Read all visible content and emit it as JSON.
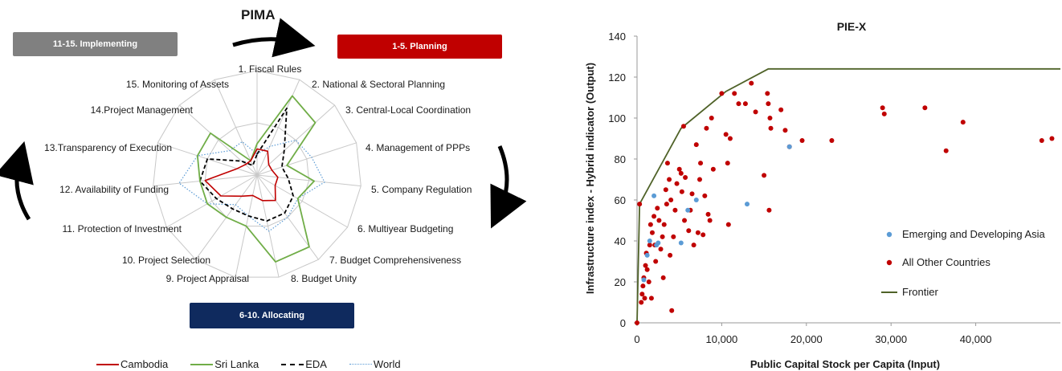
{
  "left_title": "PIMA",
  "phases": {
    "implementing": "11-15. Implementing",
    "planning": "1-5. Planning",
    "allocating": "6-10. Allocating"
  },
  "colors": {
    "implementing": "#808080",
    "planning": "#c00000",
    "allocating": "#0f2a5e",
    "cambodia": "#c00000",
    "sri_lanka": "#70ad47",
    "eda": "#000000",
    "world": "#5b9bd5",
    "asia_points": "#5b9bd5",
    "other_points": "#c00000",
    "frontier": "#4f6228"
  },
  "legend_left": [
    "Cambodia",
    "Sri Lanka",
    "EDA",
    "World"
  ],
  "chart_data": [
    {
      "type": "radar",
      "axes": [
        "1. Fiscal Rules",
        "2. National & Sectoral Planning",
        "3. Central-Local Coordination",
        "4. Management of PPPs",
        "5. Company Regulation",
        "6. Multiyear Budgeting",
        "7. Budget Comprehensiveness",
        "8. Budget Unity",
        "9. Project Appraisal",
        "10. Project Selection",
        "11. Protection of Investment",
        "12. Availability of Funding",
        "13.Transparency of Execution",
        "14.Project Management",
        "15. Monitoring of Assets"
      ],
      "rmax": 1,
      "series": [
        {
          "name": "Cambodia",
          "values": [
            0.25,
            0.25,
            0.15,
            0.15,
            0.2,
            0.2,
            0.3,
            0.25,
            0.2,
            0.25,
            0.4,
            0.5,
            0.2,
            0.15,
            0.15
          ]
        },
        {
          "name": "Sri Lanka",
          "values": [
            0.3,
            0.83,
            0.75,
            0.3,
            0.55,
            0.45,
            0.85,
            0.85,
            0.5,
            0.5,
            0.55,
            0.55,
            0.6,
            0.6,
            0.15
          ]
        },
        {
          "name": "EDA",
          "values": [
            0.2,
            0.7,
            0.35,
            0.25,
            0.3,
            0.4,
            0.45,
            0.45,
            0.4,
            0.4,
            0.45,
            0.55,
            0.5,
            0.2,
            0.1
          ]
        },
        {
          "name": "World",
          "values": [
            0.2,
            0.3,
            0.5,
            0.55,
            0.65,
            0.45,
            0.5,
            0.55,
            0.4,
            0.35,
            0.55,
            0.75,
            0.6,
            0.35,
            0.35
          ]
        }
      ]
    },
    {
      "type": "scatter",
      "title": "PIE-X",
      "xlabel": "Public Capital Stock per Capita (Input)",
      "ylabel": "Infrastructure index - Hybrid indicator (Output)",
      "xlim": [
        0,
        50000
      ],
      "ylim": [
        0,
        140
      ],
      "xticks": [
        "0",
        "10,000",
        "20,000",
        "30,000",
        "40,000"
      ],
      "xtick_values": [
        0,
        10000,
        20000,
        30000,
        40000
      ],
      "yticks": [
        0,
        20,
        40,
        60,
        80,
        100,
        120,
        140
      ],
      "legend": [
        "Emerging and Developing Asia",
        "All Other Countries",
        "Frontier"
      ],
      "series": [
        {
          "name": "Emerging and Developing Asia",
          "points": [
            [
              2000,
              62
            ],
            [
              1500,
              40
            ],
            [
              2500,
              39
            ],
            [
              1200,
              33
            ],
            [
              800,
              21
            ],
            [
              5200,
              39
            ],
            [
              6000,
              55
            ],
            [
              18000,
              86
            ],
            [
              13000,
              58
            ],
            [
              2300,
              38
            ],
            [
              7000,
              60
            ]
          ]
        },
        {
          "name": "All Other Countries",
          "points": [
            [
              0,
              0
            ],
            [
              300,
              58
            ],
            [
              500,
              10
            ],
            [
              600,
              14
            ],
            [
              700,
              18
            ],
            [
              800,
              22
            ],
            [
              900,
              12
            ],
            [
              1000,
              28
            ],
            [
              1100,
              34
            ],
            [
              1200,
              26
            ],
            [
              1400,
              20
            ],
            [
              1500,
              38
            ],
            [
              1600,
              48
            ],
            [
              1700,
              12
            ],
            [
              1800,
              44
            ],
            [
              2000,
              52
            ],
            [
              2100,
              38
            ],
            [
              2200,
              30
            ],
            [
              2400,
              56
            ],
            [
              2600,
              50
            ],
            [
              2800,
              36
            ],
            [
              3000,
              42
            ],
            [
              3100,
              22
            ],
            [
              3200,
              48
            ],
            [
              3400,
              65
            ],
            [
              3500,
              58
            ],
            [
              3600,
              78
            ],
            [
              3800,
              70
            ],
            [
              3900,
              33
            ],
            [
              4000,
              60
            ],
            [
              4100,
              6
            ],
            [
              4300,
              42
            ],
            [
              4500,
              55
            ],
            [
              4700,
              68
            ],
            [
              5000,
              75
            ],
            [
              5200,
              73
            ],
            [
              5300,
              64
            ],
            [
              5500,
              96
            ],
            [
              5600,
              50
            ],
            [
              5700,
              71
            ],
            [
              6100,
              45
            ],
            [
              6300,
              55
            ],
            [
              6500,
              63
            ],
            [
              6700,
              38
            ],
            [
              7000,
              87
            ],
            [
              7200,
              44
            ],
            [
              7400,
              70
            ],
            [
              7500,
              78
            ],
            [
              7800,
              43
            ],
            [
              8000,
              62
            ],
            [
              8200,
              95
            ],
            [
              8400,
              53
            ],
            [
              8600,
              50
            ],
            [
              8800,
              100
            ],
            [
              9000,
              75
            ],
            [
              10000,
              112
            ],
            [
              10500,
              92
            ],
            [
              10700,
              78
            ],
            [
              10800,
              48
            ],
            [
              11000,
              90
            ],
            [
              11500,
              112
            ],
            [
              12000,
              107
            ],
            [
              12800,
              107
            ],
            [
              13500,
              117
            ],
            [
              14000,
              103
            ],
            [
              15000,
              72
            ],
            [
              15400,
              112
            ],
            [
              15500,
              107
            ],
            [
              15600,
              55
            ],
            [
              15700,
              100
            ],
            [
              15800,
              95
            ],
            [
              17000,
              104
            ],
            [
              17500,
              94
            ],
            [
              18000,
              86
            ],
            [
              19500,
              89
            ],
            [
              23000,
              89
            ],
            [
              29000,
              105
            ],
            [
              29200,
              102
            ],
            [
              34000,
              105
            ],
            [
              36500,
              84
            ],
            [
              38500,
              98
            ],
            [
              47800,
              89
            ],
            [
              49000,
              90
            ]
          ]
        },
        {
          "name": "Frontier",
          "line": [
            [
              0,
              0
            ],
            [
              300,
              58
            ],
            [
              5200,
              95
            ],
            [
              10500,
              113
            ],
            [
              15500,
              124
            ],
            [
              50000,
              124
            ]
          ]
        }
      ]
    }
  ]
}
